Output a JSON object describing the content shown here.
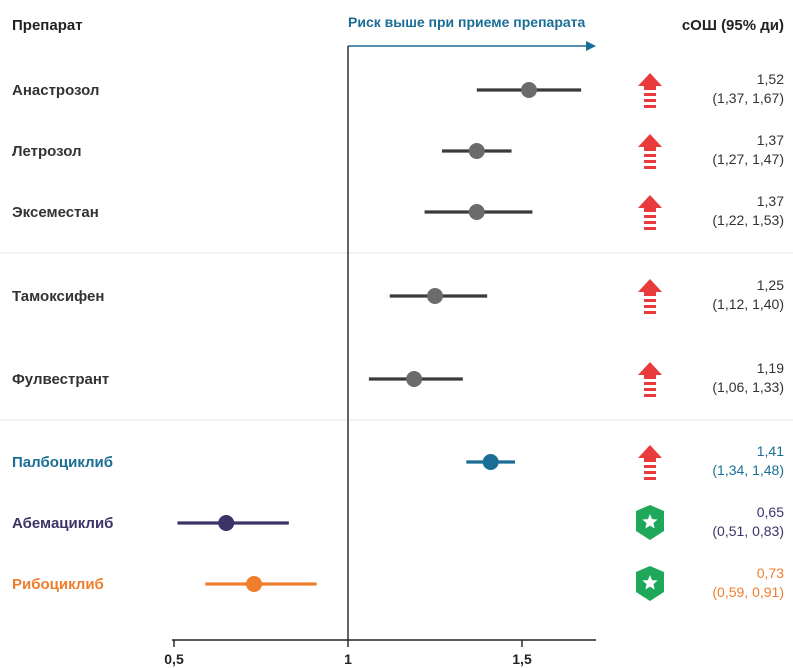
{
  "chart_data": {
    "type": "forest",
    "header_left": "Препарат",
    "header_arrow": "Риск выше при приеме препарата",
    "header_right": "сОШ (95% ди)",
    "xlim": [
      0.5,
      1.7
    ],
    "x_ticks": [
      "0,5",
      "1",
      "1,5"
    ],
    "x_tick_values": [
      0.5,
      1,
      1.5
    ],
    "reference_line": 1,
    "rows": [
      {
        "name": "Анастрозол",
        "or": 1.52,
        "lo": 1.37,
        "hi": 1.67,
        "or_text": "1,52",
        "ci_text": "(1,37, 1,67)",
        "color": "#6b6b6b",
        "line_color": "#3a3a3a",
        "label_color": "#333333",
        "icon": "arrow-up-icon"
      },
      {
        "name": "Летрозол",
        "or": 1.37,
        "lo": 1.27,
        "hi": 1.47,
        "or_text": "1,37",
        "ci_text": "(1,27, 1,47)",
        "color": "#6b6b6b",
        "line_color": "#3a3a3a",
        "label_color": "#333333",
        "icon": "arrow-up-icon"
      },
      {
        "name": "Эксеместан",
        "or": 1.37,
        "lo": 1.22,
        "hi": 1.53,
        "or_text": "1,37",
        "ci_text": "(1,22, 1,53)",
        "color": "#6b6b6b",
        "line_color": "#3a3a3a",
        "label_color": "#333333",
        "icon": "arrow-up-icon"
      },
      {
        "name": "Тамоксифен",
        "or": 1.25,
        "lo": 1.12,
        "hi": 1.4,
        "or_text": "1,25",
        "ci_text": "(1,12, 1,40)",
        "color": "#6b6b6b",
        "line_color": "#3a3a3a",
        "label_color": "#333333",
        "icon": "arrow-up-icon"
      },
      {
        "name": "Фулвестрант",
        "or": 1.19,
        "lo": 1.06,
        "hi": 1.33,
        "or_text": "1,19",
        "ci_text": "(1,06, 1,33)",
        "color": "#6b6b6b",
        "line_color": "#3a3a3a",
        "label_color": "#333333",
        "icon": "arrow-up-icon"
      },
      {
        "name": "Палбоциклиб",
        "or": 1.41,
        "lo": 1.34,
        "hi": 1.48,
        "or_text": "1,41",
        "ci_text": "(1,34, 1,48)",
        "color": "#1a6e96",
        "line_color": "#1a6e96",
        "label_color": "#1a6e96",
        "icon": "arrow-up-icon"
      },
      {
        "name": "Абемациклиб",
        "or": 0.65,
        "lo": 0.51,
        "hi": 0.83,
        "or_text": "0,65",
        "ci_text": "(0,51, 0,83)",
        "color": "#3b3468",
        "line_color": "#3b3468",
        "label_color": "#3b3468",
        "icon": "shield-star-icon"
      },
      {
        "name": "Рибоциклиб",
        "or": 0.73,
        "lo": 0.59,
        "hi": 0.91,
        "or_text": "0,73",
        "ci_text": "(0,59, 0,91)",
        "color": "#ef7d2c",
        "line_color": "#ef7d2c",
        "label_color": "#ef7d2c",
        "icon": "shield-star-icon"
      }
    ],
    "colors": {
      "header_arrow": "#1a6e96",
      "arrow_icon": "#e83b3b",
      "shield_icon": "#1fa85a",
      "axis": "#222222",
      "separator": "#e3e3e3"
    }
  }
}
